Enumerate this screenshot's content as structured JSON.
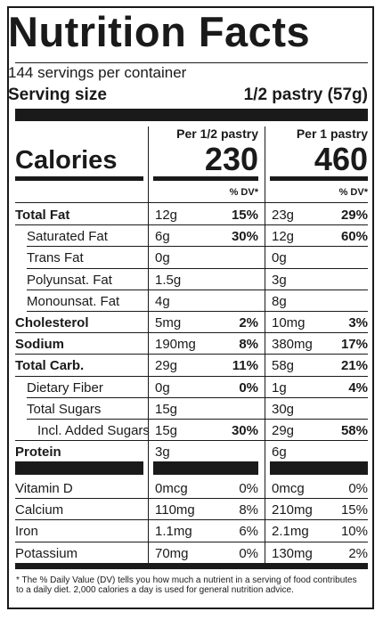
{
  "title": "Nutrition Facts",
  "servings_per_container": "144 servings per container",
  "serving_size_label": "Serving size",
  "serving_size_value": "1/2 pastry (57g)",
  "col1_header": "Per 1/2 pastry",
  "col2_header": "Per 1 pastry",
  "calories_label": "Calories",
  "calories_col1": "230",
  "calories_col2": "460",
  "dv_header": "% DV*",
  "nutrients": [
    {
      "label": "Total Fat",
      "a": "12g",
      "ap": "15%",
      "b": "23g",
      "bp": "29%"
    },
    {
      "label": "Saturated Fat",
      "a": "6g",
      "ap": "30%",
      "b": "12g",
      "bp": "60%"
    },
    {
      "label": "Trans Fat",
      "a": "0g",
      "ap": "",
      "b": "0g",
      "bp": ""
    },
    {
      "label": "Polyunsat. Fat",
      "a": "1.5g",
      "ap": "",
      "b": "3g",
      "bp": ""
    },
    {
      "label": "Monounsat. Fat",
      "a": "4g",
      "ap": "",
      "b": "8g",
      "bp": ""
    },
    {
      "label": "Cholesterol",
      "a": "5mg",
      "ap": "2%",
      "b": "10mg",
      "bp": "3%"
    },
    {
      "label": "Sodium",
      "a": "190mg",
      "ap": "8%",
      "b": "380mg",
      "bp": "17%"
    },
    {
      "label": "Total Carb.",
      "a": "29g",
      "ap": "11%",
      "b": "58g",
      "bp": "21%"
    },
    {
      "label": "Dietary Fiber",
      "a": "0g",
      "ap": "0%",
      "b": "1g",
      "bp": "4%"
    },
    {
      "label": "Total Sugars",
      "a": "15g",
      "ap": "",
      "b": "30g",
      "bp": ""
    },
    {
      "label": "Incl. Added Sugars",
      "a": "15g",
      "ap": "30%",
      "b": "29g",
      "bp": "58%"
    },
    {
      "label": "Protein",
      "a": "3g",
      "ap": "",
      "b": "6g",
      "bp": ""
    }
  ],
  "vitamins": [
    {
      "label": "Vitamin D",
      "a": "0mcg",
      "ap": "0%",
      "b": "0mcg",
      "bp": "0%"
    },
    {
      "label": "Calcium",
      "a": "110mg",
      "ap": "8%",
      "b": "210mg",
      "bp": "15%"
    },
    {
      "label": "Iron",
      "a": "1.1mg",
      "ap": "6%",
      "b": "2.1mg",
      "bp": "10%"
    },
    {
      "label": "Potassium",
      "a": "70mg",
      "ap": "0%",
      "b": "130mg",
      "bp": "2%"
    }
  ],
  "footnote": "* The % Daily Value (DV) tells you how much a nutrient in a serving of food contributes to a daily diet. 2,000 calories a day is used for general nutrition advice."
}
